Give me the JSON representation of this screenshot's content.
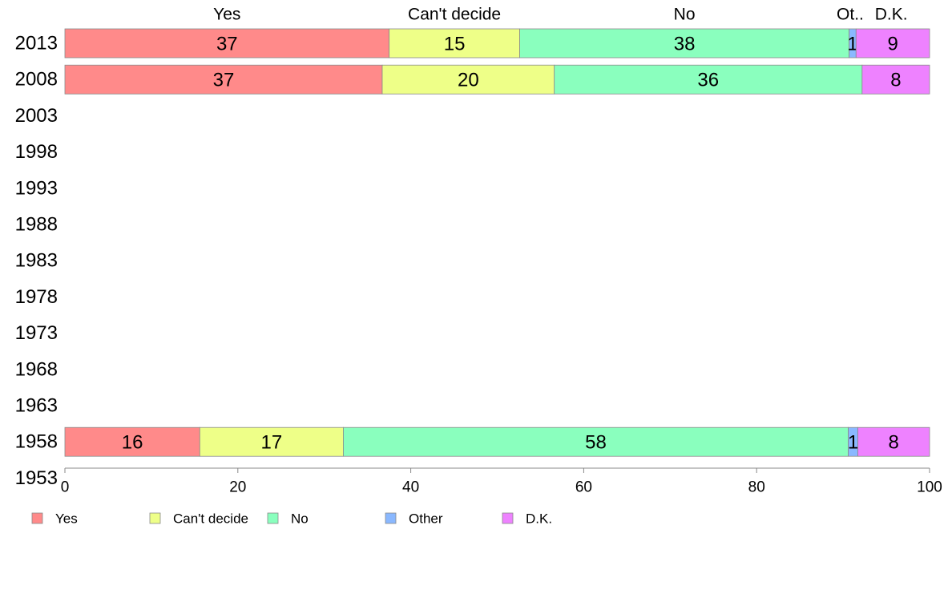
{
  "chart_data": {
    "type": "bar",
    "orientation": "horizontal",
    "stacked": true,
    "categories": [
      "2013",
      "2008",
      "2003",
      "1998",
      "1993",
      "1988",
      "1983",
      "1978",
      "1973",
      "1968",
      "1963",
      "1958",
      "1953"
    ],
    "series": [
      {
        "name": "Yes",
        "values": [
          37.5,
          36.7,
          null,
          null,
          null,
          null,
          null,
          null,
          null,
          null,
          null,
          15.6,
          null
        ],
        "labels": [
          "37",
          "37",
          null,
          null,
          null,
          null,
          null,
          null,
          null,
          null,
          null,
          "16",
          null
        ],
        "color": "#FF8A8A"
      },
      {
        "name": "Can't decide",
        "values": [
          15.1,
          19.9,
          null,
          null,
          null,
          null,
          null,
          null,
          null,
          null,
          null,
          16.6,
          null
        ],
        "labels": [
          "15",
          "20",
          null,
          null,
          null,
          null,
          null,
          null,
          null,
          null,
          null,
          "17",
          null
        ],
        "color": "#EEFF88"
      },
      {
        "name": "No",
        "values": [
          38.1,
          35.6,
          null,
          null,
          null,
          null,
          null,
          null,
          null,
          null,
          null,
          58.4,
          null
        ],
        "labels": [
          "38",
          "36",
          null,
          null,
          null,
          null,
          null,
          null,
          null,
          null,
          null,
          "58",
          null
        ],
        "color": "#8AFFBE"
      },
      {
        "name": "Other",
        "values": [
          0.8,
          0,
          null,
          null,
          null,
          null,
          null,
          null,
          null,
          null,
          null,
          1.1,
          null
        ],
        "labels": [
          "1",
          "",
          null,
          null,
          null,
          null,
          null,
          null,
          null,
          null,
          null,
          "1",
          null
        ],
        "color": "#8AB8FF"
      },
      {
        "name": "D.K.",
        "values": [
          8.5,
          7.8,
          null,
          null,
          null,
          null,
          null,
          null,
          null,
          null,
          null,
          8.3,
          null
        ],
        "labels": [
          "9",
          "8",
          null,
          null,
          null,
          null,
          null,
          null,
          null,
          null,
          null,
          "8",
          null
        ],
        "color": "#EE82FF"
      }
    ],
    "top_labels": [
      "Yes",
      "Can't decide",
      "No",
      "Ot..",
      "D.K."
    ],
    "xlim": [
      0,
      100
    ],
    "xticks": [
      0,
      20,
      40,
      60,
      80,
      100
    ],
    "grid": false,
    "legend_position": "bottom-left"
  }
}
